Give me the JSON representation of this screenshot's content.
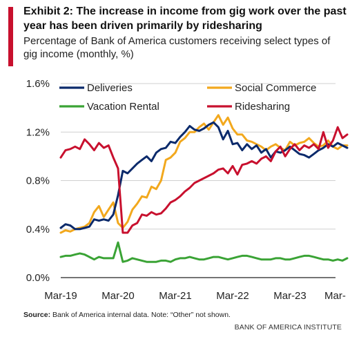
{
  "header": {
    "title": "Exhibit 2:  The increase in income from gig work over the past year has been driven primarily by ridesharing",
    "subtitle": "Percentage of Bank of America customers receiving select types of gig income (monthly, %)"
  },
  "footer": {
    "source_label": "Source:",
    "source_text": " Bank of America internal data.  Note: “Other” not shown.",
    "brand": "BANK OF AMERICA INSTITUTE"
  },
  "colors": {
    "accent": "#c8102e",
    "deliveries": "#0b2a6b",
    "social_commerce": "#f2a81d",
    "vacation_rental": "#3aa335",
    "ridesharing": "#c8102e",
    "gridline": "#cfcfcf"
  },
  "chart_data": {
    "type": "line",
    "title": "Exhibit 2:  The increase in income from gig work over the past year has been driven primarily by ridesharing",
    "subtitle": "Percentage of Bank of America customers receiving select types of gig income (monthly, %)",
    "xlabel": "",
    "ylabel": "",
    "x_start": "2019-03",
    "x_ticks": [
      "Mar-19",
      "Mar-20",
      "Mar-21",
      "Mar-22",
      "Mar-23",
      "Mar-"
    ],
    "y_ticks": [
      "0.0%",
      "0.4%",
      "0.8%",
      "1.2%",
      "1.6%"
    ],
    "ylim": [
      0,
      1.6
    ],
    "grid": "horizontal",
    "legend": "top",
    "x": [
      "2019-03",
      "2019-04",
      "2019-05",
      "2019-06",
      "2019-07",
      "2019-08",
      "2019-09",
      "2019-10",
      "2019-11",
      "2019-12",
      "2020-01",
      "2020-02",
      "2020-03",
      "2020-04",
      "2020-05",
      "2020-06",
      "2020-07",
      "2020-08",
      "2020-09",
      "2020-10",
      "2020-11",
      "2020-12",
      "2021-01",
      "2021-02",
      "2021-03",
      "2021-04",
      "2021-05",
      "2021-06",
      "2021-07",
      "2021-08",
      "2021-09",
      "2021-10",
      "2021-11",
      "2021-12",
      "2022-01",
      "2022-02",
      "2022-03",
      "2022-04",
      "2022-05",
      "2022-06",
      "2022-07",
      "2022-08",
      "2022-09",
      "2022-10",
      "2022-11",
      "2022-12",
      "2023-01",
      "2023-02",
      "2023-03",
      "2023-04",
      "2023-05",
      "2023-06",
      "2023-07",
      "2023-08",
      "2023-09",
      "2023-10",
      "2023-11",
      "2023-12",
      "2024-01",
      "2024-02",
      "2024-03"
    ],
    "series": [
      {
        "name": "Deliveries",
        "color": "#0b2a6b",
        "values": [
          0.41,
          0.44,
          0.43,
          0.4,
          0.4,
          0.41,
          0.42,
          0.48,
          0.47,
          0.48,
          0.47,
          0.52,
          0.68,
          0.88,
          0.86,
          0.9,
          0.94,
          0.97,
          1.0,
          0.96,
          1.03,
          1.06,
          1.07,
          1.12,
          1.11,
          1.16,
          1.2,
          1.25,
          1.22,
          1.21,
          1.23,
          1.26,
          1.28,
          1.24,
          1.14,
          1.21,
          1.1,
          1.11,
          1.05,
          1.1,
          1.06,
          1.09,
          1.03,
          1.06,
          0.99,
          1.04,
          1.03,
          1.05,
          1.08,
          1.05,
          1.02,
          1.01,
          0.99,
          1.02,
          1.05,
          1.07,
          1.1,
          1.08,
          1.11,
          1.09,
          1.07
        ]
      },
      {
        "name": "Social Commerce",
        "color": "#f2a81d",
        "values": [
          0.37,
          0.39,
          0.38,
          0.4,
          0.41,
          0.42,
          0.45,
          0.54,
          0.59,
          0.5,
          0.56,
          0.62,
          0.45,
          0.41,
          0.46,
          0.56,
          0.61,
          0.67,
          0.66,
          0.75,
          0.73,
          0.8,
          0.97,
          0.99,
          1.03,
          1.12,
          1.15,
          1.2,
          1.2,
          1.24,
          1.27,
          1.22,
          1.28,
          1.34,
          1.26,
          1.32,
          1.23,
          1.18,
          1.18,
          1.13,
          1.12,
          1.1,
          1.08,
          1.05,
          1.08,
          1.1,
          1.07,
          1.05,
          1.12,
          1.09,
          1.11,
          1.12,
          1.15,
          1.11,
          1.08,
          1.09,
          1.13,
          1.08,
          1.06,
          1.09,
          1.09
        ]
      },
      {
        "name": "Vacation Rental",
        "color": "#3aa335",
        "values": [
          0.17,
          0.18,
          0.18,
          0.19,
          0.2,
          0.19,
          0.17,
          0.15,
          0.17,
          0.16,
          0.16,
          0.16,
          0.29,
          0.13,
          0.14,
          0.16,
          0.15,
          0.14,
          0.13,
          0.13,
          0.13,
          0.14,
          0.14,
          0.13,
          0.15,
          0.16,
          0.16,
          0.17,
          0.16,
          0.15,
          0.15,
          0.16,
          0.17,
          0.17,
          0.16,
          0.15,
          0.16,
          0.17,
          0.18,
          0.18,
          0.17,
          0.16,
          0.15,
          0.15,
          0.15,
          0.16,
          0.16,
          0.15,
          0.15,
          0.16,
          0.17,
          0.18,
          0.18,
          0.17,
          0.16,
          0.15,
          0.15,
          0.14,
          0.15,
          0.14,
          0.16
        ]
      },
      {
        "name": "Ridesharing",
        "color": "#c8102e",
        "values": [
          0.99,
          1.05,
          1.06,
          1.08,
          1.06,
          1.14,
          1.1,
          1.05,
          1.11,
          1.07,
          1.09,
          0.99,
          0.9,
          0.37,
          0.37,
          0.43,
          0.45,
          0.52,
          0.51,
          0.54,
          0.52,
          0.53,
          0.57,
          0.62,
          0.64,
          0.67,
          0.71,
          0.74,
          0.78,
          0.8,
          0.82,
          0.84,
          0.86,
          0.89,
          0.9,
          0.86,
          0.92,
          0.85,
          0.93,
          0.94,
          0.96,
          0.94,
          0.98,
          1.0,
          0.96,
          1.04,
          1.08,
          1.0,
          1.06,
          1.1,
          1.05,
          1.09,
          1.07,
          1.1,
          1.06,
          1.2,
          1.07,
          1.13,
          1.24,
          1.15,
          1.18
        ]
      }
    ]
  }
}
